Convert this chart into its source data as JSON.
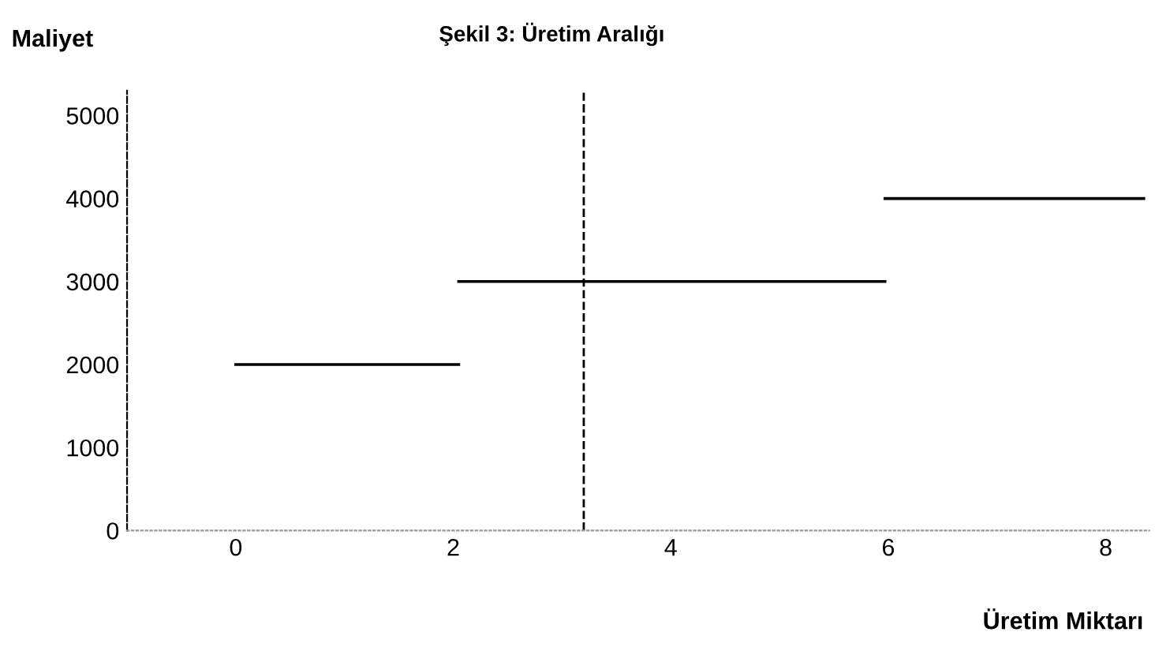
{
  "chart_data": {
    "type": "line",
    "title": "Şekil 3: Üretim Aralığı",
    "ylabel": "Maliyet",
    "xlabel": "Üretim Miktarı",
    "series": [
      {
        "color": "#000000",
        "x": [
          0,
          2.05
        ],
        "values": [
          2000,
          2000
        ]
      },
      {
        "color": "#000000",
        "x": [
          2.05,
          5.97
        ],
        "values": [
          3000,
          3000
        ]
      },
      {
        "color": "#000000",
        "x": [
          5.97,
          8.35
        ],
        "values": [
          4000,
          4000
        ]
      }
    ],
    "ref_lines": [
      {
        "axis": "x",
        "value": 3.2,
        "label": null,
        "color": "#000000",
        "line_style": "dashed"
      }
    ],
    "xlim": [
      -1,
      8.4
    ],
    "ylim": [
      0,
      5300
    ],
    "xticks": [
      0,
      2,
      4,
      6,
      8
    ],
    "yticks": [
      0,
      1000,
      2000,
      3000,
      4000,
      5000
    ],
    "grid": false,
    "legend": false,
    "marker": "none",
    "line_style": "solid"
  }
}
